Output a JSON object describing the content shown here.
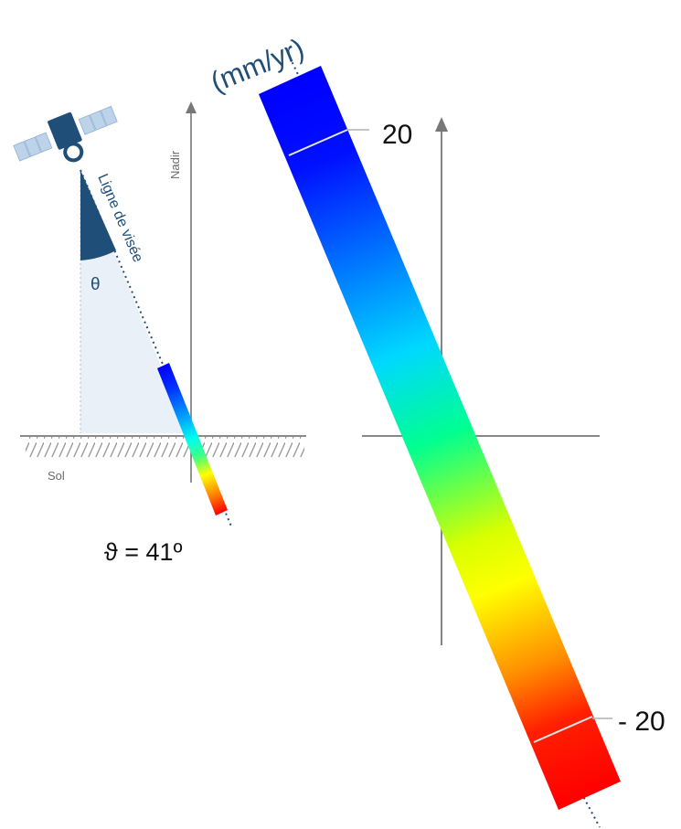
{
  "diagram": {
    "unit_label": "(mm/yr)",
    "scale_max_label": "20",
    "scale_min_label": "- 20",
    "angle_label": "ϑ = 41º",
    "nadir_label": "Nadir",
    "line_of_sight_label": "Ligne de visée",
    "theta_symbol": "θ",
    "ground_label": "Sol"
  },
  "colors": {
    "satellite": "#1f4e79",
    "solar_panel": "#bcd3ea",
    "cone": "#eaf0f7",
    "axis": "#777777",
    "ramp": [
      "#ff0000",
      "#ff8c00",
      "#ffff00",
      "#00ff88",
      "#00ffff",
      "#0080ff",
      "#0000ff"
    ]
  },
  "icons": [
    "satellite-icon",
    "arrow-up-icon"
  ]
}
